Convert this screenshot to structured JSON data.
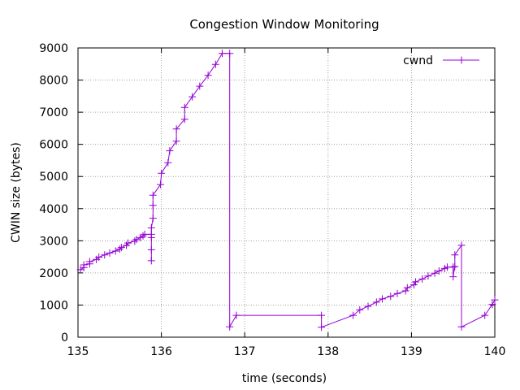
{
  "chart_data": {
    "type": "line",
    "title": "Congestion Window Monitoring",
    "xlabel": "time (seconds)",
    "ylabel": "CWIN size (bytes)",
    "xlim": [
      135,
      140
    ],
    "ylim": [
      0,
      9000
    ],
    "x_ticks": [
      135,
      136,
      137,
      138,
      139,
      140
    ],
    "x_tick_labels": [
      "135",
      "136",
      "137",
      "138",
      "139",
      "140"
    ],
    "y_ticks": [
      0,
      1000,
      2000,
      3000,
      4000,
      5000,
      6000,
      7000,
      8000,
      9000
    ],
    "y_tick_labels": [
      "0",
      "1000",
      "2000",
      "3000",
      "4000",
      "5000",
      "6000",
      "7000",
      "8000",
      "9000"
    ],
    "grid": true,
    "legend_position": "top-right",
    "series": [
      {
        "name": "cwnd",
        "color": "#9400d3",
        "marker": "plus",
        "points": [
          [
            135.03,
            2100
          ],
          [
            135.07,
            2170
          ],
          [
            135.07,
            2250
          ],
          [
            135.14,
            2280
          ],
          [
            135.14,
            2350
          ],
          [
            135.22,
            2420
          ],
          [
            135.25,
            2490
          ],
          [
            135.32,
            2560
          ],
          [
            135.38,
            2620
          ],
          [
            135.45,
            2680
          ],
          [
            135.5,
            2740
          ],
          [
            135.52,
            2790
          ],
          [
            135.58,
            2860
          ],
          [
            135.6,
            2930
          ],
          [
            135.68,
            2990
          ],
          [
            135.7,
            3040
          ],
          [
            135.75,
            3100
          ],
          [
            135.78,
            3150
          ],
          [
            135.8,
            3200
          ],
          [
            135.88,
            3200
          ],
          [
            135.88,
            2380
          ],
          [
            135.88,
            2720
          ],
          [
            135.88,
            3100
          ],
          [
            135.88,
            3400
          ],
          [
            135.9,
            3700
          ],
          [
            135.9,
            4100
          ],
          [
            135.9,
            4420
          ],
          [
            135.99,
            4750
          ],
          [
            136.0,
            5100
          ],
          [
            136.08,
            5430
          ],
          [
            136.1,
            5800
          ],
          [
            136.18,
            6100
          ],
          [
            136.18,
            6480
          ],
          [
            136.28,
            6780
          ],
          [
            136.28,
            7150
          ],
          [
            136.37,
            7480
          ],
          [
            136.46,
            7810
          ],
          [
            136.56,
            8150
          ],
          [
            136.65,
            8490
          ],
          [
            136.73,
            8830
          ],
          [
            136.82,
            8830
          ],
          [
            136.82,
            320
          ],
          [
            136.9,
            680
          ],
          [
            137.92,
            680
          ],
          [
            137.92,
            310
          ],
          [
            138.3,
            680
          ],
          [
            138.38,
            850
          ],
          [
            138.48,
            960
          ],
          [
            138.58,
            1090
          ],
          [
            138.65,
            1190
          ],
          [
            138.75,
            1270
          ],
          [
            138.83,
            1360
          ],
          [
            138.93,
            1440
          ],
          [
            138.95,
            1540
          ],
          [
            139.03,
            1630
          ],
          [
            139.05,
            1720
          ],
          [
            139.13,
            1810
          ],
          [
            139.2,
            1900
          ],
          [
            139.28,
            1990
          ],
          [
            139.33,
            2060
          ],
          [
            139.4,
            2140
          ],
          [
            139.43,
            2180
          ],
          [
            139.5,
            2180
          ],
          [
            139.5,
            1880
          ],
          [
            139.52,
            2200
          ],
          [
            139.52,
            2560
          ],
          [
            139.6,
            2860
          ],
          [
            139.6,
            320
          ],
          [
            139.88,
            680
          ],
          [
            139.97,
            1020
          ],
          [
            140.0,
            1160
          ]
        ]
      }
    ]
  }
}
